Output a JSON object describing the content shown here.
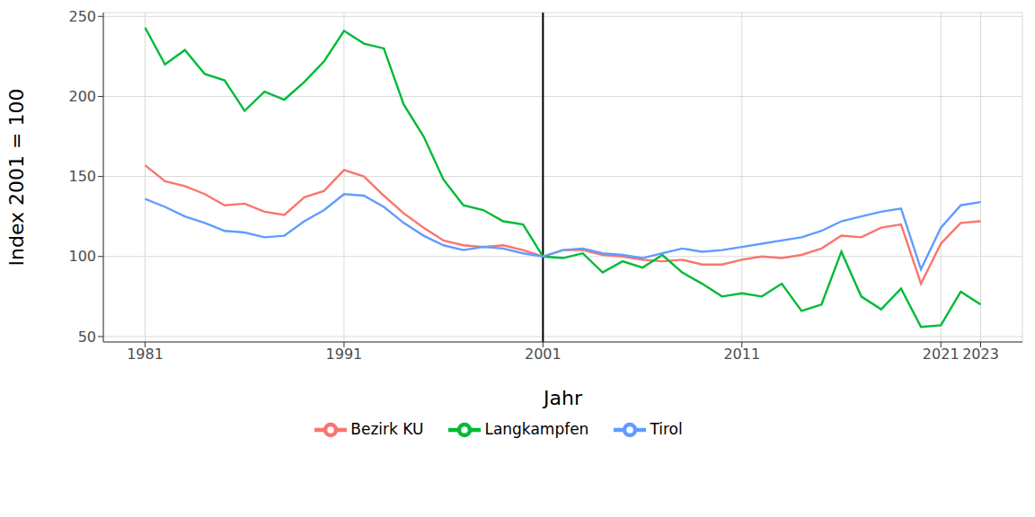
{
  "chart_data": {
    "type": "line",
    "x_label": "Jahr",
    "y_label": "Index 2001 = 100",
    "x": [
      1981,
      1982,
      1983,
      1984,
      1985,
      1986,
      1987,
      1988,
      1989,
      1990,
      1991,
      1992,
      1993,
      1994,
      1995,
      1996,
      1997,
      1998,
      1999,
      2000,
      2001,
      2002,
      2003,
      2004,
      2005,
      2006,
      2007,
      2008,
      2009,
      2010,
      2011,
      2012,
      2013,
      2014,
      2015,
      2016,
      2017,
      2018,
      2019,
      2020,
      2021,
      2022,
      2023
    ],
    "series": [
      {
        "name": "Bezirk KU",
        "color": "#F8766D",
        "values": [
          157,
          147,
          144,
          139,
          132,
          133,
          128,
          126,
          137,
          141,
          154,
          150,
          138,
          127,
          118,
          110,
          107,
          106,
          107,
          104,
          100,
          104,
          104,
          101,
          100,
          98,
          97,
          98,
          95,
          95,
          98,
          100,
          99,
          101,
          105,
          113,
          112,
          118,
          120,
          83,
          108,
          121,
          122
        ]
      },
      {
        "name": "Langkampfen",
        "color": "#00BA38",
        "values": [
          243,
          220,
          229,
          214,
          210,
          191,
          203,
          198,
          209,
          222,
          241,
          233,
          230,
          195,
          175,
          148,
          132,
          129,
          122,
          120,
          100,
          99,
          102,
          90,
          97,
          93,
          101,
          90,
          83,
          75,
          77,
          75,
          83,
          66,
          70,
          103,
          75,
          67,
          80,
          56,
          57,
          78,
          70
        ]
      },
      {
        "name": "Tirol",
        "color": "#619CFF",
        "values": [
          136,
          131,
          125,
          121,
          116,
          115,
          112,
          113,
          122,
          129,
          139,
          138,
          131,
          121,
          113,
          107,
          104,
          106,
          105,
          102,
          100,
          104,
          105,
          102,
          101,
          99,
          102,
          105,
          103,
          104,
          106,
          108,
          110,
          112,
          116,
          122,
          125,
          128,
          130,
          92,
          118,
          132,
          134
        ]
      }
    ],
    "xlim": [
      1978.9,
      2025.1
    ],
    "xticks": [
      1981,
      1991,
      2001,
      2011,
      2021,
      2023
    ],
    "ylim": [
      46.6,
      252.4
    ],
    "yticks": [
      50,
      100,
      150,
      200,
      250
    ],
    "vline": 2001,
    "grid": true,
    "legend": "bottom"
  }
}
